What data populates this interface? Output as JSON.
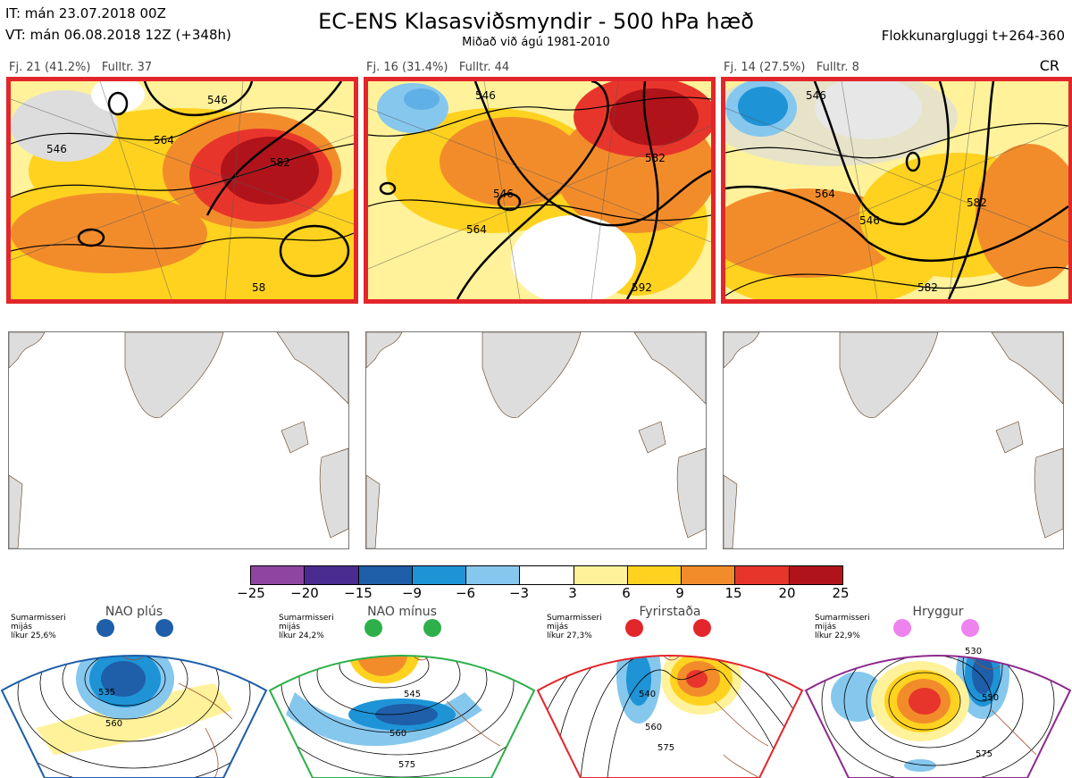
{
  "header": {
    "it": "IT: mán 23.07.2018 00Z",
    "vt": "VT: mán 06.08.2018 12Z  (+348h)",
    "title": "EC-ENS Klasasviðsmyndir - 500 hPa hæð",
    "subtitle": "Miðað við ágú 1981-2010",
    "window": "Flokkunargluggi t+264-360",
    "code": "CR"
  },
  "clusters": [
    {
      "label": "Fj. 21 (41.2%)   Fulltr. 37",
      "contours": [
        "546",
        "564",
        "582",
        "546",
        "58"
      ],
      "frame_color": "#e3262b"
    },
    {
      "label": "Fj. 16 (31.4%)   Fulltr. 44",
      "contours": [
        "546",
        "546",
        "564",
        "582",
        "592"
      ],
      "frame_color": "#e3262b"
    },
    {
      "label": "Fj. 14 (27.5%)   Fulltr. 8",
      "contours": [
        "546",
        "546",
        "564",
        "582",
        "582"
      ],
      "frame_color": "#e3262b"
    }
  ],
  "colorbar": {
    "colors": [
      "#8e44a0",
      "#4a2b8f",
      "#1f5ea8",
      "#1e93d6",
      "#86c7ee",
      "#ffffff",
      "#fff29a",
      "#ffd21f",
      "#f28c2b",
      "#e8352b",
      "#b0141a"
    ],
    "ticks": [
      "−25",
      "−20",
      "−15",
      "−9",
      "−6",
      "−3",
      "3",
      "6",
      "9",
      "15",
      "20",
      "25"
    ]
  },
  "regimes": [
    {
      "name": "NAO plús",
      "info": "Sumarmisseri\nmijás\nlíkur 25,6%",
      "color": "#1f5ea8",
      "labels": [
        "535",
        "560"
      ]
    },
    {
      "name": "NAO mínus",
      "info": "Sumarmisseri\nmijás\nlíkur 24,2%",
      "color": "#2db04a",
      "labels": [
        "545",
        "560",
        "575"
      ]
    },
    {
      "name": "Fyrirstaða",
      "info": "Sumarmisseri\nmijás\nlíkur 27,3%",
      "color": "#e3262b",
      "labels": [
        "540",
        "560",
        "575"
      ]
    },
    {
      "name": "Hryggur",
      "info": "Sumarmisseri\nmijás\nlíkur 22,9%",
      "color": "#8e2a8e",
      "labels": [
        "530",
        "550",
        "575"
      ]
    }
  ]
}
